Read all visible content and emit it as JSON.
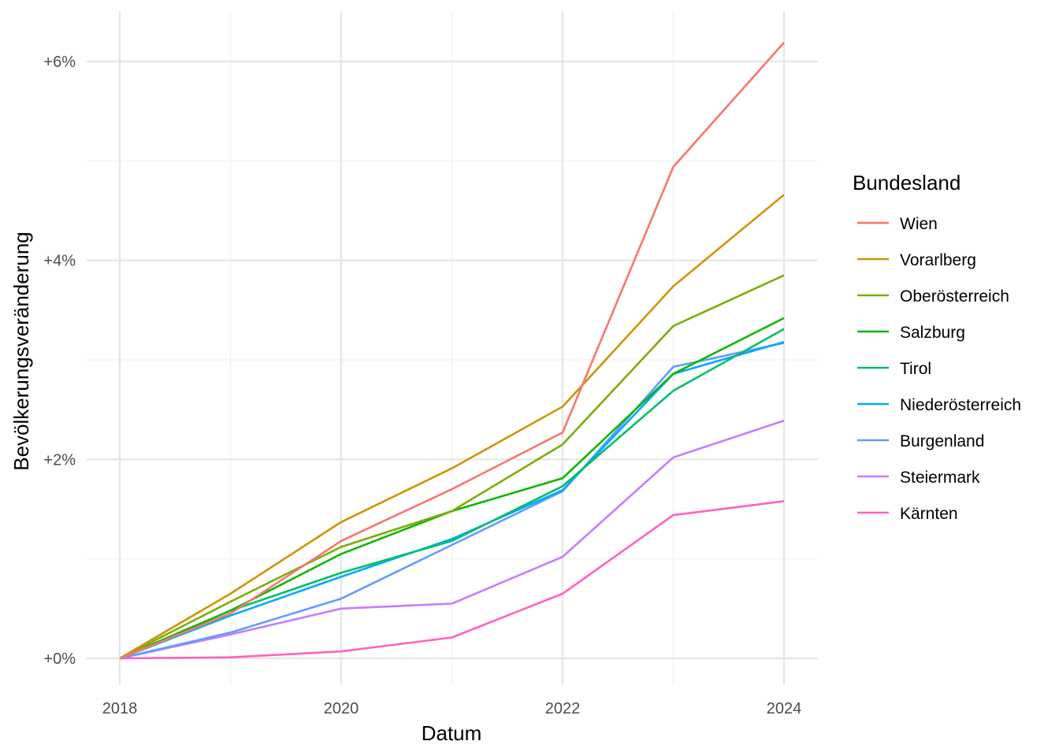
{
  "chart_data": {
    "type": "line",
    "xlabel": "Datum",
    "ylabel": "Bevölkerungsveränderung",
    "x": [
      2018,
      2019,
      2020,
      2021,
      2022,
      2023,
      2024
    ],
    "xticks": [
      2018,
      2020,
      2022,
      2024
    ],
    "xtick_labels": [
      "2018",
      "2020",
      "2022",
      "2024"
    ],
    "xlim": [
      2017.7,
      2024.3
    ],
    "yticks": [
      0,
      2,
      4,
      6
    ],
    "ytick_labels": [
      "+0%",
      "+2%",
      "+4%",
      "+6%"
    ],
    "ylim": [
      -0.3,
      6.5
    ],
    "grid": true,
    "legend": {
      "title": "Bundesland",
      "position": "right"
    },
    "series": [
      {
        "name": "Wien",
        "color": "#F8766D",
        "values": [
          0,
          0.45,
          1.18,
          1.7,
          2.27,
          4.94,
          6.19
        ]
      },
      {
        "name": "Vorarlberg",
        "color": "#CD9600",
        "values": [
          0,
          0.65,
          1.37,
          1.91,
          2.53,
          3.74,
          4.66
        ]
      },
      {
        "name": "Oberösterreich",
        "color": "#7CAE00",
        "values": [
          0,
          0.57,
          1.12,
          1.48,
          2.15,
          3.34,
          3.85
        ]
      },
      {
        "name": "Salzburg",
        "color": "#0CB702",
        "values": [
          0,
          0.48,
          1.05,
          1.48,
          1.81,
          2.86,
          3.42
        ]
      },
      {
        "name": "Tirol",
        "color": "#00BE67",
        "values": [
          0,
          0.48,
          0.86,
          1.18,
          1.73,
          2.69,
          3.31
        ]
      },
      {
        "name": "Niederösterreich",
        "color": "#00A9FF",
        "values": [
          0,
          0.43,
          0.82,
          1.2,
          1.69,
          2.86,
          3.18
        ]
      },
      {
        "name": "Burgenland",
        "color": "#619CFF",
        "values": [
          0,
          0.26,
          0.6,
          1.14,
          1.68,
          2.93,
          3.17
        ]
      },
      {
        "name": "Steiermark",
        "color": "#C77CFF",
        "values": [
          0,
          0.24,
          0.5,
          0.55,
          1.02,
          2.02,
          2.39
        ]
      },
      {
        "name": "Kärnten",
        "color": "#FF61C3",
        "values": [
          0,
          0.01,
          0.07,
          0.21,
          0.65,
          1.44,
          1.58
        ]
      }
    ]
  }
}
